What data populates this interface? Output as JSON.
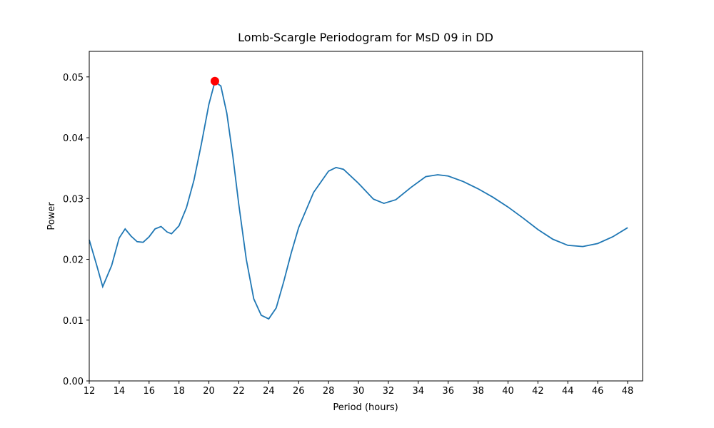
{
  "chart_data": {
    "type": "line",
    "title": "Lomb-Scargle Periodogram for MsD 09 in DD",
    "xlabel": "Period (hours)",
    "ylabel": "Power",
    "color": "#1f77b4",
    "x": [
      12,
      12.5,
      12.9,
      13.5,
      14,
      14.4,
      14.8,
      15.2,
      15.6,
      16,
      16.4,
      16.8,
      17.2,
      17.5,
      18,
      18.5,
      19,
      19.5,
      20,
      20.4,
      20.8,
      21.2,
      21.6,
      22,
      22.5,
      23,
      23.5,
      24,
      24.5,
      25,
      25.5,
      26,
      27,
      28,
      28.5,
      29,
      30,
      31,
      31.7,
      32.5,
      33.5,
      34.5,
      35.3,
      36,
      37,
      38,
      39,
      40,
      41,
      42,
      43,
      44,
      45,
      46,
      47,
      48
    ],
    "values": [
      0.0232,
      0.019,
      0.0155,
      0.019,
      0.0235,
      0.025,
      0.0238,
      0.0229,
      0.0228,
      0.0237,
      0.025,
      0.0254,
      0.0245,
      0.0242,
      0.0255,
      0.0285,
      0.033,
      0.039,
      0.0455,
      0.0492,
      0.0485,
      0.044,
      0.037,
      0.029,
      0.02,
      0.0135,
      0.0108,
      0.0102,
      0.012,
      0.0163,
      0.021,
      0.0252,
      0.031,
      0.0345,
      0.0351,
      0.0348,
      0.0325,
      0.0299,
      0.0292,
      0.0298,
      0.0318,
      0.0336,
      0.0339,
      0.0337,
      0.0328,
      0.0316,
      0.0302,
      0.0286,
      0.0268,
      0.0249,
      0.0233,
      0.0223,
      0.0221,
      0.0226,
      0.0237,
      0.0252
    ],
    "peak": {
      "x": 20.4,
      "y": 0.0493,
      "color": "#ff0000"
    },
    "xlim": [
      12,
      49
    ],
    "ylim": [
      0,
      0.0542
    ],
    "xticks": [
      12,
      14,
      16,
      18,
      20,
      22,
      24,
      26,
      28,
      30,
      32,
      34,
      36,
      38,
      40,
      42,
      44,
      46,
      48
    ],
    "yticks": [
      {
        "value": 0,
        "label": "0.00"
      },
      {
        "value": 0.01,
        "label": "0.01"
      },
      {
        "value": 0.02,
        "label": "0.02"
      },
      {
        "value": 0.03,
        "label": "0.03"
      },
      {
        "value": 0.04,
        "label": "0.04"
      },
      {
        "value": 0.05,
        "label": "0.05"
      }
    ]
  }
}
